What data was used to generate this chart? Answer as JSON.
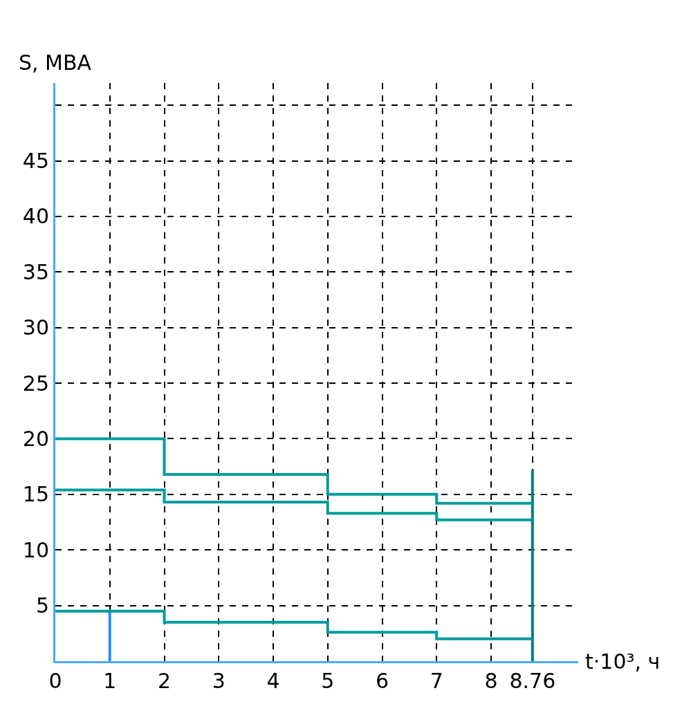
{
  "chart_data": {
    "type": "step",
    "xlabel": "t·10³, ч",
    "ylabel": "S, МВА",
    "x": [
      0,
      2,
      5,
      7,
      8.76
    ],
    "series": [
      {
        "color": "#009b9b",
        "values": [
          20,
          16.8,
          15,
          14.2,
          14.2
        ]
      },
      {
        "color": "#009b9b",
        "values": [
          15.4,
          14.3,
          13.3,
          12.7,
          12.7
        ]
      },
      {
        "color": "#009b9b",
        "values": [
          4.5,
          3.5,
          2.6,
          2,
          2
        ]
      },
      {
        "type": "bar",
        "color": "#1e8fff",
        "x": [
          1
        ],
        "values": [
          4.5
        ]
      },
      {
        "type": "bar",
        "color": "#007d80",
        "x": [
          8.76
        ],
        "values": [
          17.2
        ]
      }
    ],
    "xlim": [
      0,
      9.6
    ],
    "xticks": [
      0,
      1,
      2,
      3,
      4,
      5,
      6,
      7,
      8,
      8.76
    ],
    "ylim": [
      0,
      52
    ],
    "yticks": [
      {
        "value": 0,
        "label": null
      },
      5,
      10,
      15,
      20,
      25,
      30,
      35,
      40,
      45,
      {
        "value": 50,
        "label": null
      }
    ],
    "grid": true,
    "marker": "none",
    "line_style": "solid"
  }
}
